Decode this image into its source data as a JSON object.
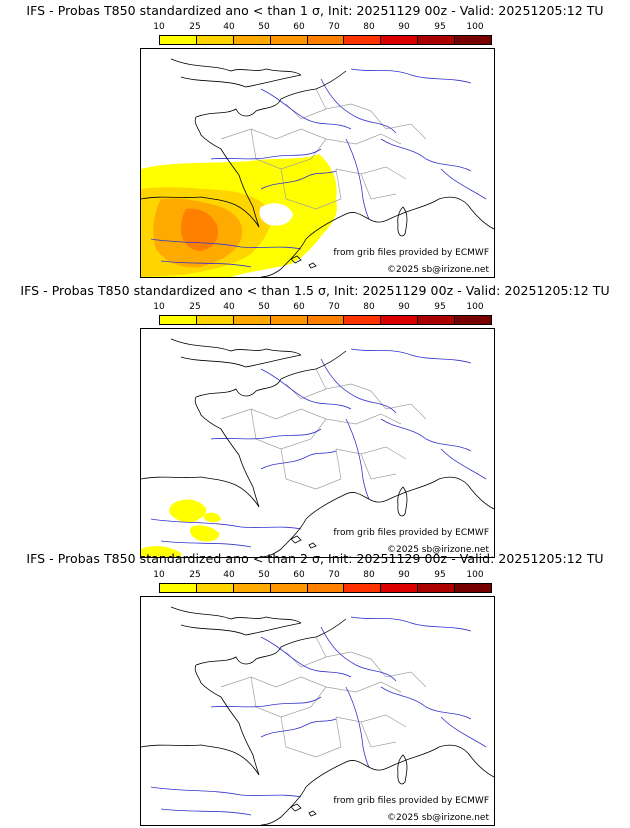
{
  "panels": [
    {
      "title": "IFS - Probas T850  standardized ano < than 1 σ, Init: 20251129 00z - Valid: 20251205:12 TU",
      "threshold": "1 σ",
      "anomaly_extent": "large"
    },
    {
      "title": "IFS - Probas T850  standardized ano < than 1.5 σ, Init: 20251129 00z - Valid: 20251205:12 TU",
      "threshold": "1.5 σ",
      "anomaly_extent": "small"
    },
    {
      "title": "IFS - Probas T850  standardized ano < than 2 σ, Init: 20251129 00z - Valid: 20251205:12 TU",
      "threshold": "2 σ",
      "anomaly_extent": "none"
    }
  ],
  "legend": {
    "ticks": [
      "10",
      "25",
      "40",
      "50",
      "60",
      "70",
      "80",
      "90",
      "95",
      "100"
    ],
    "colors": [
      "#ffff00",
      "#ffd500",
      "#ffaa00",
      "#ff9500",
      "#ff7f00",
      "#ff3300",
      "#dd0000",
      "#aa0000",
      "#770000"
    ]
  },
  "credits": {
    "source": "from grib files provided by ECMWF",
    "copyright": "©2025 sb@irizone.net"
  },
  "map_colors": {
    "coast": "#000000",
    "rivers": "#3333cc",
    "regions": "#a0a0a0"
  }
}
